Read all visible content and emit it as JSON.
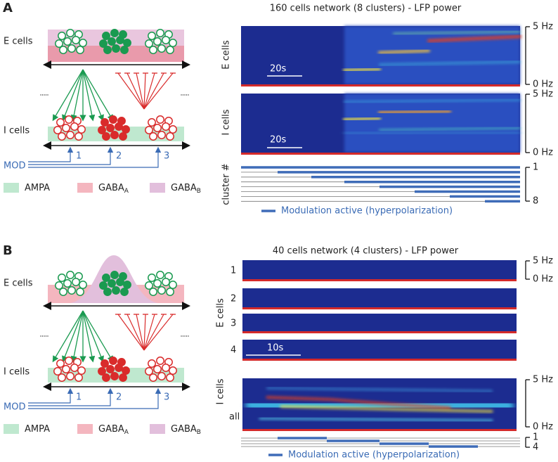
{
  "panels": [
    {
      "label": "A",
      "diagram": {
        "e_cells": "E cells",
        "i_cells": "I cells",
        "mod": "MOD",
        "inputs": [
          "1",
          "2",
          "3"
        ],
        "legend": [
          {
            "text": "AMPA"
          },
          {
            "text": "GABA",
            "sub": "A"
          },
          {
            "text": "GABA",
            "sub": "B"
          }
        ]
      },
      "spectrogram": {
        "title": "160 cells network (8 clusters) - LFP power",
        "e_cells": "E cells",
        "i_cells": "I cells",
        "time_bar": "20s",
        "freq_max": "5 Hz",
        "freq_min": "0 Hz",
        "cluster_label": "cluster #",
        "cluster_first": "1",
        "cluster_last": "8",
        "legend": "Modulation active (hyperpolarization)"
      }
    },
    {
      "label": "B",
      "diagram": {
        "e_cells": "E cells",
        "i_cells": "I cells",
        "mod": "MOD",
        "inputs": [
          "1",
          "2",
          "3"
        ],
        "legend": [
          {
            "text": "AMPA"
          },
          {
            "text": "GABA",
            "sub": "A"
          },
          {
            "text": "GABA",
            "sub": "B"
          }
        ]
      },
      "spectrogram": {
        "title": "40 cells network (4 clusters) - LFP power",
        "e_cells": "E cells",
        "clusters": [
          "1",
          "2",
          "3",
          "4"
        ],
        "time_bar": "10s",
        "freq_max": "5 Hz",
        "freq_min": "0 Hz",
        "i_cells": "I cells",
        "all": "all",
        "cluster_first": "1",
        "cluster_last": "4",
        "legend": "Modulation active (hyperpolarization)"
      }
    }
  ]
}
